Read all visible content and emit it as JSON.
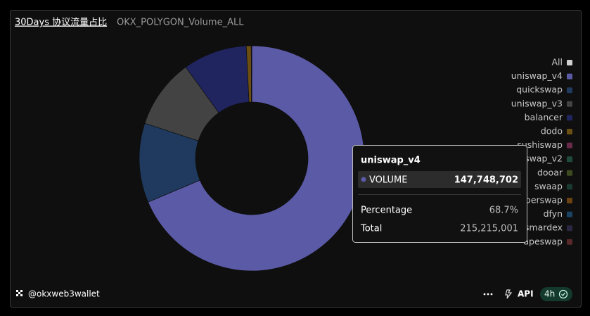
{
  "header": {
    "title": "30Days 协议流量占比",
    "subtitle": "OKX_POLYGON_Volume_ALL"
  },
  "chart_data": {
    "type": "pie",
    "legend_all": "All",
    "categories": [
      "uniswap_v4",
      "quickswap",
      "uniswap_v3",
      "balancer",
      "dodo",
      "sushiswap",
      "uniswap_v2",
      "dooar",
      "swaap",
      "kyberswap",
      "dfyn",
      "smardex",
      "apeswap"
    ],
    "values": [
      147748702,
      24500000,
      21500000,
      19800000,
      1500000,
      40000,
      30000,
      20000,
      20000,
      20000,
      15000,
      10000,
      10000
    ],
    "colors": [
      "#5b5aa6",
      "#1f3a5e",
      "#434343",
      "#20245f",
      "#6b4e12",
      "#6a2a4a",
      "#1f4a3a",
      "#3e4a20",
      "#183a30",
      "#6a4212",
      "#1a4262",
      "#2b2742",
      "#5a2a2a"
    ],
    "all_color": "#cfcfcf"
  },
  "tooltip": {
    "name": "uniswap_v4",
    "metric": "VOLUME",
    "value": "147,748,702",
    "percentage_label": "Percentage",
    "percentage": "68.7%",
    "total_label": "Total",
    "total": "215,215,001"
  },
  "footer": {
    "handle": "@okxweb3wallet",
    "api": "API",
    "interval": "4h"
  }
}
